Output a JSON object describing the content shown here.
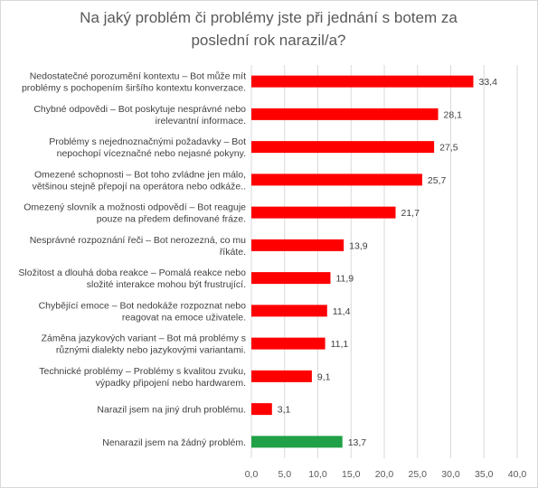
{
  "chart_data": {
    "type": "bar",
    "orientation": "horizontal",
    "title": "Na jaký problém či problémy jste při jednání s botem za poslední rok narazil/a?",
    "title_lines": [
      "Na jaký problém či problémy jste při jednání s botem za",
      "poslední rok narazil/a?"
    ],
    "categories": [
      [
        "Nedostatečné porozumění kontextu – Bot může mít",
        "problémy s pochopením širšího kontextu konverzace."
      ],
      [
        "Chybné odpovědi – Bot poskytuje nesprávné nebo",
        "irelevantní informace."
      ],
      [
        "Problémy s nejednoznačnými požadavky – Bot",
        "nepochopí víceznačné nebo nejasné pokyny."
      ],
      [
        "Omezené schopnosti – Bot toho zvládne jen málo,",
        "většinou stejně přepojí na operátora nebo odkáže.."
      ],
      [
        "Omezený slovník a možnosti odpovědí – Bot reaguje",
        "pouze na předem definované fráze."
      ],
      [
        "Nesprávné rozpoznání řeči – Bot nerozezná, co mu",
        "říkáte."
      ],
      [
        "Složitost a dlouhá doba reakce – Pomalá reakce nebo",
        "složité interakce mohou být frustrující."
      ],
      [
        "Chybějící emoce – Bot nedokáže rozpoznat nebo",
        "reagovat na emoce uživatele."
      ],
      [
        "Záměna jazykových variant – Bot má problémy s",
        "různými dialekty nebo jazykovými variantami."
      ],
      [
        "Technické problémy – Problémy s kvalitou zvuku,",
        "výpadky připojení nebo hardwarem."
      ],
      [
        "Narazil jsem na jiný druh problému."
      ],
      [
        "Nenarazil jsem na žádný problém."
      ]
    ],
    "values": [
      33.4,
      28.1,
      27.5,
      25.7,
      21.7,
      13.9,
      11.9,
      11.4,
      11.1,
      9.1,
      3.1,
      13.7
    ],
    "value_labels": [
      "33,4",
      "28,1",
      "27,5",
      "25,7",
      "21,7",
      "13,9",
      "11,9",
      "11,4",
      "11,1",
      "9,1",
      "3,1",
      "13,7"
    ],
    "bar_colors": [
      "#ff0000",
      "#ff0000",
      "#ff0000",
      "#ff0000",
      "#ff0000",
      "#ff0000",
      "#ff0000",
      "#ff0000",
      "#ff0000",
      "#ff0000",
      "#ff0000",
      "#21a147"
    ],
    "xlim": [
      0,
      40
    ],
    "xticks": [
      "0,0",
      "5,0",
      "10,0",
      "15,0",
      "20,0",
      "25,0",
      "30,0",
      "35,0",
      "40,0"
    ],
    "grid": true,
    "legend": "none"
  }
}
